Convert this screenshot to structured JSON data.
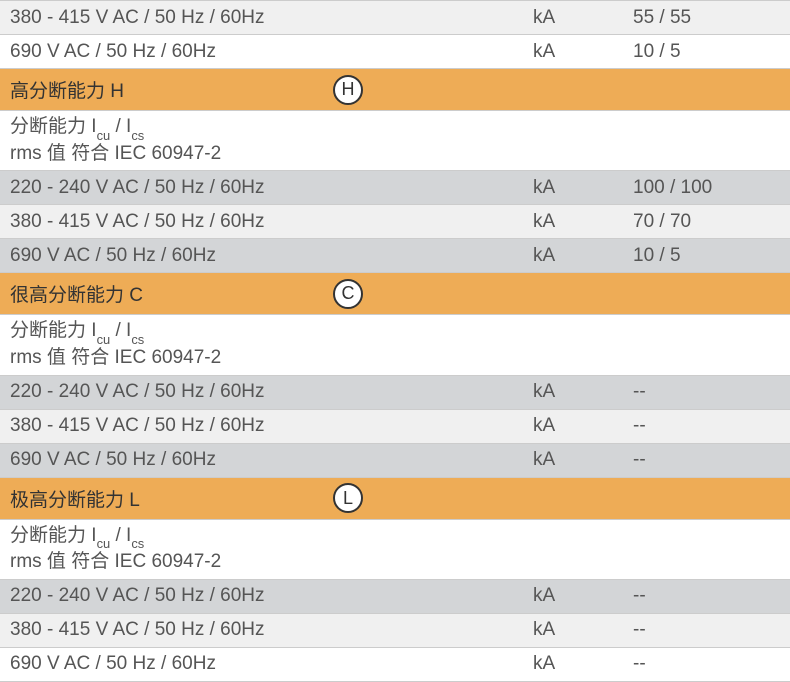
{
  "colors": {
    "orange": "#eeac56",
    "gray_light": "#f0f0f0",
    "gray_mid": "#d3d5d7",
    "white": "#ffffff",
    "text": "#555555",
    "border": "#cccccc"
  },
  "sections": [
    {
      "type": "data",
      "rows": [
        {
          "bg": "gray-light",
          "label": "380 - 415 V AC / 50 Hz / 60Hz",
          "unit": "kA",
          "value": "55 / 55"
        },
        {
          "bg": "white",
          "label": "690 V AC / 50 Hz / 60Hz",
          "unit": "kA",
          "value": "10 / 5"
        }
      ]
    },
    {
      "type": "header",
      "title": "高分断能力 H",
      "badge": "H",
      "subheader_line1_prefix": "分断能力 I",
      "subheader_line1_sub1": "cu",
      "subheader_line1_mid": " / I",
      "subheader_line1_sub2": "cs",
      "subheader_line2": "rms 值 符合 IEC 60947-2",
      "rows": [
        {
          "bg": "gray-mid",
          "label": "220 - 240 V AC / 50 Hz / 60Hz",
          "unit": "kA",
          "value": "100 / 100"
        },
        {
          "bg": "gray-light",
          "label": "380 - 415 V AC / 50 Hz / 60Hz",
          "unit": "kA",
          "value": "70 / 70"
        },
        {
          "bg": "gray-mid",
          "label": "690 V AC / 50 Hz / 60Hz",
          "unit": "kA",
          "value": "10 / 5"
        }
      ]
    },
    {
      "type": "header",
      "title": "很高分断能力 C",
      "badge": "C",
      "subheader_line1_prefix": "分断能力 I",
      "subheader_line1_sub1": "cu",
      "subheader_line1_mid": " / I",
      "subheader_line1_sub2": "cs",
      "subheader_line2": "rms 值 符合 IEC 60947-2",
      "rows": [
        {
          "bg": "gray-mid",
          "label": "220 - 240 V AC / 50 Hz / 60Hz",
          "unit": "kA",
          "value": "--"
        },
        {
          "bg": "gray-light",
          "label": "380 - 415 V AC / 50 Hz / 60Hz",
          "unit": "kA",
          "value": "--"
        },
        {
          "bg": "gray-mid",
          "label": "690 V AC / 50 Hz / 60Hz",
          "unit": "kA",
          "value": "--"
        }
      ]
    },
    {
      "type": "header",
      "title": "极高分断能力 L",
      "badge": "L",
      "subheader_line1_prefix": "分断能力 I",
      "subheader_line1_sub1": "cu",
      "subheader_line1_mid": " / I",
      "subheader_line1_sub2": "cs",
      "subheader_line2": "rms 值 符合 IEC 60947-2",
      "rows": [
        {
          "bg": "gray-mid",
          "label": "220 - 240 V AC / 50 Hz / 60Hz",
          "unit": "kA",
          "value": "--"
        },
        {
          "bg": "gray-light",
          "label": "380 - 415 V AC / 50 Hz / 60Hz",
          "unit": "kA",
          "value": "--"
        },
        {
          "bg": "white",
          "label": "690 V AC / 50 Hz / 60Hz",
          "unit": "kA",
          "value": "--"
        }
      ]
    }
  ]
}
